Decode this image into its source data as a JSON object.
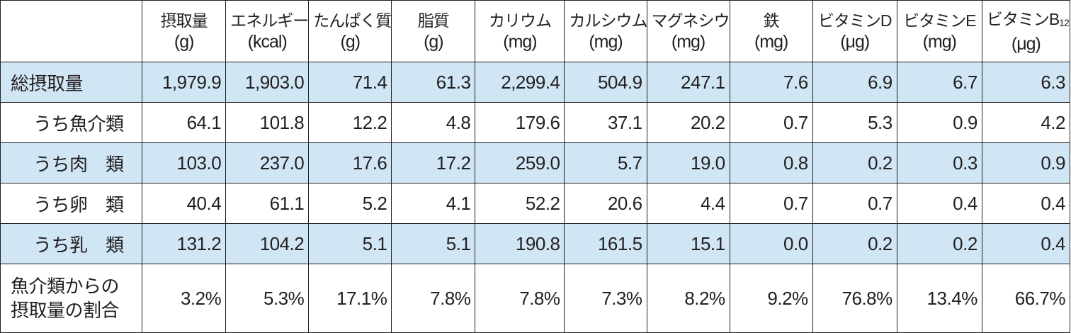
{
  "columns": [
    {
      "name": "摂取量",
      "unit": "(g)"
    },
    {
      "name": "エネルギー",
      "unit": "(kcal)"
    },
    {
      "name": "たんぱく質",
      "unit": "(g)"
    },
    {
      "name": "脂質",
      "unit": "(g)"
    },
    {
      "name": "カリウム",
      "unit": "(mg)"
    },
    {
      "name": "カルシウム",
      "unit": "(mg)"
    },
    {
      "name": "マグネシウム",
      "unit": "(mg)"
    },
    {
      "name": "鉄",
      "unit": "(mg)"
    },
    {
      "name": "ビタミンD",
      "unit": "(μg)"
    },
    {
      "name": "ビタミンE",
      "unit": "(mg)"
    },
    {
      "name": "ビタミンB",
      "sub": "12",
      "unit": "(μg)"
    }
  ],
  "rows": [
    {
      "label": "総摂取量",
      "values": [
        "1,979.9",
        "1,903.0",
        "71.4",
        "61.3",
        "2,299.4",
        "504.9",
        "247.1",
        "7.6",
        "6.9",
        "6.7",
        "6.3"
      ]
    },
    {
      "label": "うち魚介類",
      "values": [
        "64.1",
        "101.8",
        "12.2",
        "4.8",
        "179.6",
        "37.1",
        "20.2",
        "0.7",
        "5.3",
        "0.9",
        "4.2"
      ]
    },
    {
      "label": "うち肉　類",
      "values": [
        "103.0",
        "237.0",
        "17.6",
        "17.2",
        "259.0",
        "5.7",
        "19.0",
        "0.8",
        "0.2",
        "0.3",
        "0.9"
      ]
    },
    {
      "label": "うち卵　類",
      "values": [
        "40.4",
        "61.1",
        "5.2",
        "4.1",
        "52.2",
        "20.6",
        "4.4",
        "0.7",
        "0.7",
        "0.4",
        "0.4"
      ]
    },
    {
      "label": "うち乳　類",
      "values": [
        "131.2",
        "104.2",
        "5.1",
        "5.1",
        "190.8",
        "161.5",
        "15.1",
        "0.0",
        "0.2",
        "0.2",
        "0.4"
      ]
    }
  ],
  "ratio_row": {
    "label_line1": "魚介類からの",
    "label_line2": "摂取量の割合",
    "values": [
      "3.2%",
      "5.3%",
      "17.1%",
      "7.8%",
      "7.8%",
      "7.3%",
      "8.2%",
      "9.2%",
      "76.8%",
      "13.4%",
      "66.7%"
    ]
  },
  "colors": {
    "shaded_row": "#d0e6f5",
    "border": "#231f20"
  }
}
